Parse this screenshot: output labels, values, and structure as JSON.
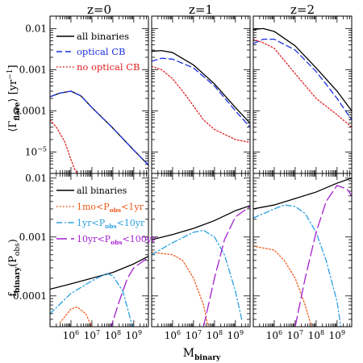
{
  "figure": {
    "column_titles": [
      "z=0",
      "z=1",
      "z=2"
    ],
    "xlabel": "M",
    "xlabel_sub": "binary",
    "top_ylabel": {
      "open": "⟨Γ",
      "sub": "flare",
      "close": "⟩ [yr",
      "sup": "−1",
      "end": "]"
    },
    "bottom_ylabel": {
      "main": "f",
      "sub": "binary",
      "mid": "(P",
      "sub2": "obs",
      "end": ")"
    }
  },
  "chart_data": [
    {
      "type": "line",
      "row": "top",
      "x_scale": "log10",
      "y_scale": "log10",
      "xlim": [
        100000,
        5000000000
      ],
      "ylim": [
        3e-06,
        0.02
      ],
      "xticks": [
        "10^6",
        "10^7",
        "10^8",
        "10^9"
      ],
      "yticks": [
        "0.01",
        "0.001",
        "0.0001",
        "10^-5"
      ],
      "legend": {
        "placement": "top-right of left panel",
        "entries": [
          "all binaries",
          "optical CB",
          "no optical CB"
        ]
      },
      "series_styles": [
        {
          "name": "all binaries",
          "color": "#000000",
          "dash": "solid"
        },
        {
          "name": "optical CB",
          "color": "#1c2fe0",
          "dash": "dashed"
        },
        {
          "name": "no optical CB",
          "color": "#e02020",
          "dash": "dotted"
        }
      ],
      "panels": [
        {
          "title": "z=0",
          "series": [
            {
              "name": "all binaries",
              "points": [
                [
                  100000,
                  0.00022
                ],
                [
                  300000,
                  0.00027
                ],
                [
                  1000000,
                  0.0003
                ],
                [
                  3000000,
                  0.00023
                ],
                [
                  10000000,
                  0.00012
                ],
                [
                  100000000,
                  3.8e-05
                ],
                [
                  1000000000,
                  1.1e-05
                ],
                [
                  5000000000,
                  4.8e-06
                ]
              ]
            },
            {
              "name": "optical CB",
              "points": [
                [
                  100000,
                  0.00022
                ],
                [
                  300000,
                  0.00027
                ],
                [
                  1000000,
                  0.0003
                ],
                [
                  3000000,
                  0.00023
                ],
                [
                  10000000,
                  0.00012
                ],
                [
                  100000000,
                  3.8e-05
                ],
                [
                  1000000000,
                  1.1e-05
                ],
                [
                  5000000000,
                  4.8e-06
                ]
              ]
            },
            {
              "name": "no optical CB",
              "points": [
                [
                  100000,
                  6e-05
                ],
                [
                  200000,
                  4e-05
                ],
                [
                  500000,
                  1.8e-05
                ],
                [
                  1000000,
                  6.5e-06
                ],
                [
                  1500000,
                  3.8e-06
                ],
                [
                  2000000,
                  3e-06
                ]
              ]
            }
          ]
        },
        {
          "title": "z=1",
          "series": [
            {
              "name": "all binaries",
              "points": [
                [
                  100000,
                  0.0028
                ],
                [
                  300000,
                  0.0029
                ],
                [
                  1000000,
                  0.0026
                ],
                [
                  10000000,
                  0.0013
                ],
                [
                  100000000,
                  0.00045
                ],
                [
                  1000000000,
                  0.00012
                ],
                [
                  5000000000,
                  5e-05
                ]
              ]
            },
            {
              "name": "optical CB",
              "points": [
                [
                  100000,
                  0.0016
                ],
                [
                  300000,
                  0.0019
                ],
                [
                  1000000,
                  0.0018
                ],
                [
                  10000000,
                  0.0011
                ],
                [
                  100000000,
                  0.0004
                ],
                [
                  1000000000,
                  0.0001
                ],
                [
                  5000000000,
                  4e-05
                ]
              ]
            },
            {
              "name": "no optical CB",
              "points": [
                [
                  100000,
                  0.0012
                ],
                [
                  300000,
                  0.001
                ],
                [
                  1000000,
                  0.0006
                ],
                [
                  3000000,
                  0.0003
                ],
                [
                  10000000,
                  0.00013
                ],
                [
                  30000000,
                  6e-05
                ],
                [
                  100000000,
                  3.5e-05
                ],
                [
                  1000000000,
                  2e-05
                ],
                [
                  5000000000,
                  1.7e-05
                ]
              ]
            }
          ]
        },
        {
          "title": "z=2",
          "series": [
            {
              "name": "all binaries",
              "points": [
                [
                  100000,
                  0.0095
                ],
                [
                  300000,
                  0.01
                ],
                [
                  1000000,
                  0.0085
                ],
                [
                  10000000,
                  0.0038
                ],
                [
                  100000000,
                  0.0011
                ],
                [
                  1000000000,
                  0.0003
                ],
                [
                  5000000000,
                  0.0001
                ]
              ]
            },
            {
              "name": "optical CB",
              "points": [
                [
                  100000,
                  0.0043
                ],
                [
                  300000,
                  0.0055
                ],
                [
                  1000000,
                  0.0055
                ],
                [
                  10000000,
                  0.003
                ],
                [
                  100000000,
                  0.0009
                ],
                [
                  1000000000,
                  0.0002
                ],
                [
                  5000000000,
                  6e-05
                ]
              ]
            },
            {
              "name": "no optical CB",
              "points": [
                [
                  100000,
                  0.0055
                ],
                [
                  300000,
                  0.0045
                ],
                [
                  1000000,
                  0.0033
                ],
                [
                  10000000,
                  0.0008
                ],
                [
                  100000000,
                  0.0002
                ],
                [
                  1000000000,
                  8e-05
                ],
                [
                  5000000000,
                  4e-05
                ]
              ]
            }
          ]
        }
      ]
    },
    {
      "type": "line",
      "row": "bottom",
      "x_scale": "log10",
      "y_scale": "log10",
      "xlim": [
        100000,
        5000000000
      ],
      "ylim": [
        3e-05,
        0.012
      ],
      "xticks": [
        "10^6",
        "10^7",
        "10^8",
        "10^9"
      ],
      "yticks": [
        "0.01",
        "0.001",
        "0.0001"
      ],
      "legend": {
        "placement": "top of left panel",
        "entries": [
          {
            "main": "all binaries"
          },
          {
            "pre": "1mo<P",
            "sub": "obs",
            "post": "<1yr"
          },
          {
            "pre": "1yr<P",
            "sub": "obs",
            "post": "<10yr"
          },
          {
            "pre": "10yr<P",
            "sub": "obs",
            "post": "<100yr"
          }
        ]
      },
      "series_styles": [
        {
          "name": "all binaries",
          "color": "#000000",
          "dash": "solid"
        },
        {
          "name": "1mo<Pobs<1yr",
          "color": "#ee5a1c",
          "dash": "dotted"
        },
        {
          "name": "1yr<Pobs<10yr",
          "color": "#2aa0e0",
          "dash": "dash-dot"
        },
        {
          "name": "10yr<Pobs<100yr",
          "color": "#a51fd0",
          "dash": "long-dash"
        }
      ],
      "panels": [
        {
          "title": "z=0",
          "series": [
            {
              "name": "all binaries",
              "points": [
                [
                  100000,
                  0.00013
                ],
                [
                  1000000,
                  0.00016
                ],
                [
                  10000000,
                  0.0002
                ],
                [
                  100000000,
                  0.00025
                ],
                [
                  1000000000,
                  0.00035
                ],
                [
                  5000000000,
                  0.00047
                ]
              ]
            },
            {
              "name": "1mo<Pobs<1yr",
              "points": [
                [
                  300000,
                  3.5e-05
                ],
                [
                  1000000,
                  6e-05
                ],
                [
                  2000000,
                  6.5e-05
                ],
                [
                  5000000,
                  5e-05
                ],
                [
                  10000000,
                  3e-05
                ]
              ]
            },
            {
              "name": "1yr<Pobs<10yr",
              "points": [
                [
                  100000,
                  5e-05
                ],
                [
                  1000000,
                  0.00011
                ],
                [
                  10000000,
                  0.00018
                ],
                [
                  50000000,
                  0.00024
                ],
                [
                  100000000,
                  0.00022
                ],
                [
                  300000000,
                  0.00012
                ],
                [
                  700000000,
                  4e-05
                ],
                [
                  1000000000,
                  2.5e-05
                ]
              ]
            },
            {
              "name": "10yr<Pobs<100yr",
              "points": [
                [
                  70000000,
                  2.5e-05
                ],
                [
                  200000000,
                  8e-05
                ],
                [
                  500000000,
                  0.0002
                ],
                [
                  1000000000,
                  0.0003
                ],
                [
                  5000000000,
                  0.00045
                ]
              ]
            }
          ]
        },
        {
          "title": "z=1",
          "series": [
            {
              "name": "all binaries",
              "points": [
                [
                  100000,
                  0.0009
                ],
                [
                  1000000,
                  0.0011
                ],
                [
                  10000000,
                  0.0014
                ],
                [
                  100000000,
                  0.0019
                ],
                [
                  1000000000,
                  0.0028
                ],
                [
                  5000000000,
                  0.0034
                ]
              ]
            },
            {
              "name": "1mo<Pobs<1yr",
              "points": [
                [
                  100000,
                  0.00055
                ],
                [
                  1000000,
                  0.0005
                ],
                [
                  3000000,
                  0.0004
                ],
                [
                  10000000,
                  0.0002
                ],
                [
                  30000000,
                  7e-05
                ],
                [
                  50000000,
                  3e-05
                ]
              ]
            },
            {
              "name": "1yr<Pobs<10yr",
              "points": [
                [
                  100000,
                  0.0005
                ],
                [
                  1000000,
                  0.0008
                ],
                [
                  10000000,
                  0.0012
                ],
                [
                  30000000,
                  0.0013
                ],
                [
                  100000000,
                  0.001
                ],
                [
                  300000000,
                  0.0005
                ],
                [
                  1000000000,
                  0.00012
                ],
                [
                  2000000000,
                  4e-05
                ]
              ]
            },
            {
              "name": "10yr<Pobs<100yr",
              "points": [
                [
                  30000000,
                  3e-05
                ],
                [
                  100000000,
                  0.0002
                ],
                [
                  300000000,
                  0.0009
                ],
                [
                  1000000000,
                  0.0022
                ],
                [
                  5000000000,
                  0.0033
                ]
              ]
            }
          ]
        },
        {
          "title": "z=2",
          "series": [
            {
              "name": "all binaries",
              "points": [
                [
                  100000,
                  0.003
                ],
                [
                  1000000,
                  0.0035
                ],
                [
                  10000000,
                  0.0045
                ],
                [
                  100000000,
                  0.0058
                ],
                [
                  1000000000,
                  0.0082
                ],
                [
                  5000000000,
                  0.01
                ]
              ]
            },
            {
              "name": "1mo<Pobs<1yr",
              "points": [
                [
                  100000,
                  0.0007
                ],
                [
                  1000000,
                  0.0006
                ],
                [
                  3000000,
                  0.0004
                ],
                [
                  10000000,
                  0.0002
                ],
                [
                  30000000,
                  7e-05
                ],
                [
                  60000000,
                  3e-05
                ]
              ]
            },
            {
              "name": "1yr<Pobs<10yr",
              "points": [
                [
                  100000,
                  0.0021
                ],
                [
                  1000000,
                  0.003
                ],
                [
                  3000000,
                  0.0035
                ],
                [
                  10000000,
                  0.0033
                ],
                [
                  30000000,
                  0.0025
                ],
                [
                  100000000,
                  0.0012
                ],
                [
                  300000000,
                  0.0004
                ],
                [
                  1000000000,
                  8e-05
                ],
                [
                  1500000000,
                  3e-05
                ]
              ]
            },
            {
              "name": "10yr<Pobs<100yr",
              "points": [
                [
                  10000000,
                  3e-05
                ],
                [
                  30000000,
                  0.0002
                ],
                [
                  100000000,
                  0.0012
                ],
                [
                  300000000,
                  0.004
                ],
                [
                  1000000000,
                  0.0075
                ],
                [
                  3000000000,
                  0.0065
                ],
                [
                  5000000000,
                  0.005
                ]
              ]
            }
          ]
        }
      ]
    }
  ]
}
